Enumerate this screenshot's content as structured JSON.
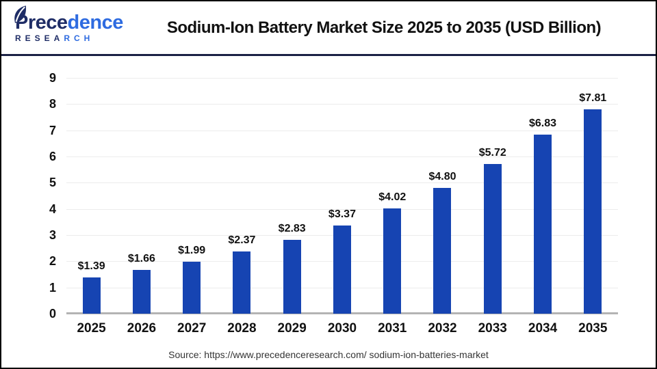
{
  "header": {
    "logo": {
      "brand_part1": "Prece",
      "brand_part2": "dence",
      "research_part1": "RESEA",
      "research_part2": "RCH"
    },
    "title": "Sodium-Ion Battery Market Size 2025 to 2035 (USD Billion)"
  },
  "chart_data": {
    "type": "bar",
    "title": "Sodium-Ion Battery Market Size 2025 to 2035 (USD Billion)",
    "categories": [
      "2025",
      "2026",
      "2027",
      "2028",
      "2029",
      "2030",
      "2031",
      "2032",
      "2033",
      "2034",
      "2035"
    ],
    "values": [
      1.39,
      1.66,
      1.99,
      2.37,
      2.83,
      3.37,
      4.02,
      4.8,
      5.72,
      6.83,
      7.81
    ],
    "value_labels": [
      "$1.39",
      "$1.66",
      "$1.99",
      "$2.37",
      "$2.83",
      "$3.37",
      "$4.02",
      "$4.80",
      "$5.72",
      "$6.83",
      "$7.81"
    ],
    "unit": "USD Billion",
    "xlabel": "",
    "ylabel": "",
    "ylim": [
      0,
      9
    ],
    "ytick_interval": 1,
    "grid": true,
    "legend": "none",
    "bar_color": "#1644b2"
  },
  "footer": {
    "source": "Source: https://www.precedenceresearch.com/ sodium-ion-batteries-market"
  },
  "colors": {
    "bar": "#1644b2",
    "gridline": "#ececec",
    "baseline": "#b3b3b3",
    "header_divider": "#1b2145",
    "logo_navy": "#1f2d66",
    "logo_blue": "#2e6be0",
    "text": "#111111",
    "source_text": "#333333"
  }
}
